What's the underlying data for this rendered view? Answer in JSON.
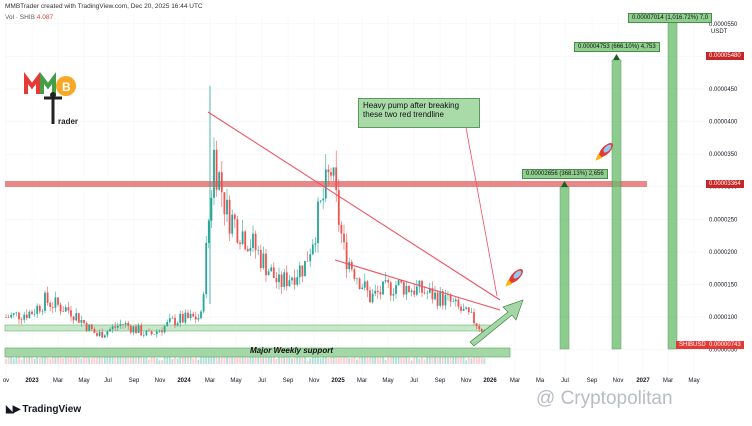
{
  "header": {
    "credit": "MMBTrader created with TradingView.com, Dec 20, 2025 16:44 UTC",
    "vol_label": "Vol · SHIB",
    "vol_value": "4.087"
  },
  "logo": {
    "text": "MMB Trader"
  },
  "annotations": {
    "note": "Heavy pump after breaking these two red trendline",
    "support": "Major Weekly support",
    "target1": "0.00002656 (368.13%) 2,656",
    "target2": "0.00004753 (666.10%) 4,753",
    "target3": "0.00007014 (1,016.72%) 7,0"
  },
  "price_labels": {
    "currency": "USDT",
    "resistance": "0.00003364",
    "top": "0.00005480",
    "current_symbol": "SHIBUSDT",
    "current": "0.00000743"
  },
  "footer": {
    "brand": "TradingView",
    "watermark": "@ Cryptopolitan"
  },
  "colors": {
    "up": "#26a69a",
    "down": "#ef5350",
    "trendline": "#f05060",
    "resistance_zone": "#e57373",
    "support_zone": "#81c784",
    "target": "#66bb6a"
  },
  "chart_data": {
    "type": "candlestick",
    "symbol": "SHIBUSDT",
    "y_ticks": [
      "0.0000050",
      "0.0000100",
      "0.0000150",
      "0.0000200",
      "0.0000250",
      "0.0000300",
      "0.0000350",
      "0.0000400",
      "0.0000450",
      "0.0000500",
      "0.0000550"
    ],
    "y_tick_values": [
      5e-06,
      1e-05,
      1.5e-05,
      2e-05,
      2.5e-05,
      3e-05,
      3.5e-05,
      4e-05,
      4.5e-05,
      5e-05,
      5.5e-05
    ],
    "ylim": [
      2.5e-06,
      5.65e-05
    ],
    "x_ticks": [
      "ov",
      "2023",
      "Mar",
      "May",
      "Jul",
      "Sep",
      "Nov",
      "2024",
      "Mar",
      "May",
      "Jul",
      "Sep",
      "Nov",
      "2025",
      "Mar",
      "May",
      "Jul",
      "Sep",
      "Nov",
      "2026",
      "Mar",
      "Ma",
      "Jul",
      "Sep",
      "Nov",
      "2027",
      "Mar",
      "May"
    ],
    "series_close": [
      {
        "d": "2022-11",
        "p": 1e-05
      },
      {
        "d": "2023-01",
        "p": 1.08e-05
      },
      {
        "d": "2023-02",
        "p": 1.25e-05
      },
      {
        "d": "2023-04",
        "p": 1.1e-05
      },
      {
        "d": "2023-06",
        "p": 7.2e-06
      },
      {
        "d": "2023-08",
        "p": 9e-06
      },
      {
        "d": "2023-10",
        "p": 7.2e-06
      },
      {
        "d": "2023-12",
        "p": 9.5e-06
      },
      {
        "d": "2024-02",
        "p": 1e-05
      },
      {
        "d": "2024-03",
        "p": 3.5e-05
      },
      {
        "d": "2024-04",
        "p": 2.6e-05
      },
      {
        "d": "2024-06",
        "p": 2.1e-05
      },
      {
        "d": "2024-08",
        "p": 1.5e-05
      },
      {
        "d": "2024-10",
        "p": 1.8e-05
      },
      {
        "d": "2024-12",
        "p": 3.25e-05
      },
      {
        "d": "2025-01",
        "p": 2e-05
      },
      {
        "d": "2025-03",
        "p": 1.3e-05
      },
      {
        "d": "2025-05",
        "p": 1.5e-05
      },
      {
        "d": "2025-07",
        "p": 1.4e-05
      },
      {
        "d": "2025-09",
        "p": 1.25e-05
      },
      {
        "d": "2025-11",
        "p": 9.5e-06
      },
      {
        "d": "2025-12",
        "p": 7.4e-06
      }
    ],
    "resistance_zone": 3.364e-05,
    "support_zone": [
      6.2e-06,
      7.8e-06
    ],
    "secondary_zone": [
      9.8e-06,
      1.08e-05
    ],
    "targets": [
      2.656e-05,
      4.753e-05,
      7.014e-05
    ],
    "current_price": 7.43e-06
  }
}
